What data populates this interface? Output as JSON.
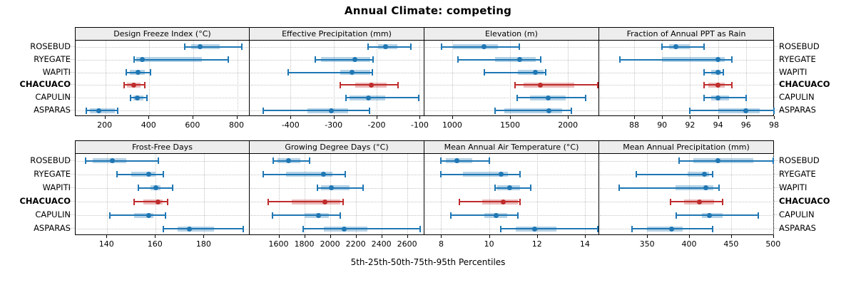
{
  "title": "Annual Climate: competing",
  "xlabel": "5th-25th-50th-75th-95th Percentiles",
  "sites": [
    "ROSEBUD",
    "RYEGATE",
    "WAPITI",
    "CHACUACO",
    "CAPULIN",
    "ASPARAS"
  ],
  "highlight_site": "CHACUACO",
  "colors": {
    "series": "#1f77b4",
    "highlight": "#bf2c2c",
    "strip_bg": "#ededed",
    "grid": "#c4c4c4",
    "border": "#000000"
  },
  "chart_data": {
    "type": "dotplot",
    "glyph": "thin line with end caps = 5th-95th percentile, thick translucent band = 25th-75th percentile, dot = 50th percentile",
    "percentile_labels": [
      "5th",
      "25th",
      "50th",
      "75th",
      "95th"
    ],
    "legend_position": "none",
    "grid": "dotted",
    "layout": "2 rows x 4 columns of panels, site labels on both left and right sides",
    "panels": [
      {
        "title": "Design Freeze Index (°C)",
        "grid_row": 0,
        "grid_col": 0,
        "xlim": [
          65,
          860
        ],
        "ticks": [
          200,
          400,
          600,
          800
        ],
        "series": [
          {
            "site": "ROSEBUD",
            "p": [
              560,
              590,
              632,
              720,
              820
            ]
          },
          {
            "site": "RYEGATE",
            "p": [
              330,
              340,
              370,
              640,
              760
            ]
          },
          {
            "site": "WAPITI",
            "p": [
              295,
              310,
              348,
              380,
              405
            ]
          },
          {
            "site": "CHACUACO",
            "p": [
              285,
              300,
              330,
              360,
              380
            ]
          },
          {
            "site": "CAPULIN",
            "p": [
              315,
              327,
              345,
              372,
              390
            ]
          },
          {
            "site": "ASPARAS",
            "p": [
              115,
              130,
              170,
              245,
              255
            ]
          }
        ]
      },
      {
        "title": "Effective Precipitation (mm)",
        "grid_row": 0,
        "grid_col": 1,
        "xlim": [
          -495,
          -89
        ],
        "ticks": [
          -400,
          -300,
          -200,
          -100
        ],
        "series": [
          {
            "site": "ROSEBUD",
            "p": [
              -220,
              -197,
              -180,
              -152,
              -121
            ]
          },
          {
            "site": "RYEGATE",
            "p": [
              -342,
              -330,
              -251,
              -215,
              -208
            ]
          },
          {
            "site": "WAPITI",
            "p": [
              -405,
              -285,
              -258,
              -215,
              -210
            ]
          },
          {
            "site": "CHACUACO",
            "p": [
              -285,
              -250,
              -212,
              -177,
              -150
            ]
          },
          {
            "site": "CAPULIN",
            "p": [
              -272,
              -263,
              -219,
              -180,
              -102
            ]
          },
          {
            "site": "ASPARAS",
            "p": [
              -464,
              -360,
              -305,
              -266,
              -217
            ]
          }
        ]
      },
      {
        "title": "Elevation (m)",
        "grid_row": 0,
        "grid_col": 2,
        "xlim": [
          760,
          2270
        ],
        "ticks": [
          1000,
          1500,
          2000
        ],
        "series": [
          {
            "site": "ROSEBUD",
            "p": [
              905,
              1005,
              1275,
              1395,
              1580
            ]
          },
          {
            "site": "RYEGATE",
            "p": [
              1050,
              1370,
              1585,
              1720,
              1765
            ]
          },
          {
            "site": "WAPITI",
            "p": [
              1275,
              1570,
              1720,
              1790,
              1810
            ]
          },
          {
            "site": "CHACUACO",
            "p": [
              1545,
              1615,
              1760,
              2055,
              2260
            ]
          },
          {
            "site": "CAPULIN",
            "p": [
              1560,
              1670,
              1830,
              1980,
              2150
            ]
          },
          {
            "site": "ASPARAS",
            "p": [
              1370,
              1450,
              1835,
              1950,
              2030
            ]
          }
        ]
      },
      {
        "title": "Fraction of Annual PPT as Rain",
        "grid_row": 0,
        "grid_col": 3,
        "xlim": [
          85.5,
          98
        ],
        "ticks": [
          88,
          90,
          92,
          94,
          96,
          98
        ],
        "series": [
          {
            "site": "ROSEBUD",
            "p": [
              90,
              90.5,
              91,
              92,
              93
            ]
          },
          {
            "site": "RYEGATE",
            "p": [
              87,
              90,
              94,
              94.5,
              95
            ]
          },
          {
            "site": "WAPITI",
            "p": [
              93,
              93.5,
              94,
              94.2,
              94.4
            ]
          },
          {
            "site": "CHACUACO",
            "p": [
              93,
              93.3,
              94,
              94.5,
              95
            ]
          },
          {
            "site": "CAPULIN",
            "p": [
              93,
              93.5,
              94,
              94.8,
              96
            ]
          },
          {
            "site": "ASPARAS",
            "p": [
              92,
              94,
              96,
              97,
              98
            ]
          }
        ]
      },
      {
        "title": "Frost-Free Days",
        "grid_row": 1,
        "grid_col": 0,
        "xlim": [
          127,
          199
        ],
        "ticks": [
          140,
          160,
          180
        ],
        "series": [
          {
            "site": "ROSEBUD",
            "p": [
              131,
              134,
              142,
              148,
              161
            ]
          },
          {
            "site": "RYEGATE",
            "p": [
              144,
              150,
              157,
              160,
              163
            ]
          },
          {
            "site": "WAPITI",
            "p": [
              153,
              158,
              160,
              162,
              167
            ]
          },
          {
            "site": "CHACUACO",
            "p": [
              151,
              155,
              161,
              163,
              165
            ]
          },
          {
            "site": "CAPULIN",
            "p": [
              141,
              151,
              157,
              159,
              164
            ]
          },
          {
            "site": "ASPARAS",
            "p": [
              163,
              169,
              174,
              184,
              196
            ]
          }
        ]
      },
      {
        "title": "Growing Degree Days (°C)",
        "grid_row": 1,
        "grid_col": 1,
        "xlim": [
          1375,
          2735
        ],
        "ticks": [
          1600,
          1800,
          2000,
          2200,
          2400,
          2600
        ],
        "series": [
          {
            "site": "ROSEBUD",
            "p": [
              1560,
              1590,
              1680,
              1770,
              1840
            ]
          },
          {
            "site": "RYEGATE",
            "p": [
              1480,
              1660,
              1950,
              2020,
              2120
            ]
          },
          {
            "site": "WAPITI",
            "p": [
              1900,
              1930,
              2010,
              2150,
              2260
            ]
          },
          {
            "site": "CHACUACO",
            "p": [
              1520,
              1700,
              1960,
              2080,
              2100
            ]
          },
          {
            "site": "CAPULIN",
            "p": [
              1550,
              1800,
              1910,
              1990,
              2080
            ]
          },
          {
            "site": "ASPARAS",
            "p": [
              1790,
              1950,
              2110,
              2290,
              2700
            ]
          }
        ]
      },
      {
        "title": "Mean Annual Air Temperature (°C)",
        "grid_row": 1,
        "grid_col": 2,
        "xlim": [
          7.3,
          14.6
        ],
        "ticks": [
          8,
          10,
          12,
          14
        ],
        "series": [
          {
            "site": "ROSEBUD",
            "p": [
              8.0,
              8.2,
              8.65,
              9.3,
              10.0
            ]
          },
          {
            "site": "RYEGATE",
            "p": [
              8.0,
              8.9,
              10.5,
              10.8,
              11.3
            ]
          },
          {
            "site": "WAPITI",
            "p": [
              10.25,
              10.35,
              10.85,
              11.3,
              11.75
            ]
          },
          {
            "site": "CHACUACO",
            "p": [
              8.75,
              9.7,
              10.6,
              11.2,
              11.3
            ]
          },
          {
            "site": "CAPULIN",
            "p": [
              8.4,
              9.8,
              10.3,
              10.75,
              11.2
            ]
          },
          {
            "site": "ASPARAS",
            "p": [
              10.5,
              11.1,
              11.9,
              12.8,
              14.55
            ]
          }
        ]
      },
      {
        "title": "Mean Annual Precipitation (mm)",
        "grid_row": 1,
        "grid_col": 3,
        "xlim": [
          293,
          501
        ],
        "ticks": [
          350,
          400,
          450,
          500
        ],
        "series": [
          {
            "site": "ROSEBUD",
            "p": [
              388,
              405,
              434,
              476,
              500
            ]
          },
          {
            "site": "RYEGATE",
            "p": [
              337,
              398,
              418,
              424,
              428
            ]
          },
          {
            "site": "WAPITI",
            "p": [
              317,
              384,
              420,
              429,
              436
            ]
          },
          {
            "site": "CHACUACO",
            "p": [
              378,
              394,
              412,
              430,
              440
            ]
          },
          {
            "site": "CAPULIN",
            "p": [
              385,
              415,
              424,
              440,
              482
            ]
          },
          {
            "site": "ASPARAS",
            "p": [
              332,
              350,
              379,
              392,
              428
            ]
          }
        ]
      }
    ]
  }
}
